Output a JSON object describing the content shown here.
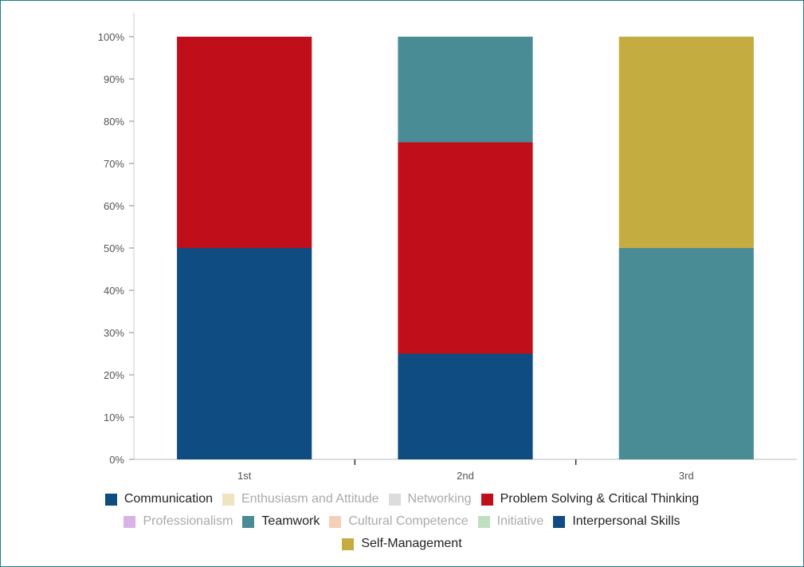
{
  "chart_data": {
    "type": "bar",
    "stacked": true,
    "normalized": true,
    "categories": [
      "1st",
      "2nd",
      "3rd"
    ],
    "ylim": [
      0,
      100
    ],
    "yticks": [
      "0%",
      "10%",
      "20%",
      "30%",
      "40%",
      "50%",
      "60%",
      "70%",
      "80%",
      "90%",
      "100%"
    ],
    "grid": false,
    "legend_position": "bottom",
    "series": [
      {
        "name": "Communication",
        "color": "#0f4c81",
        "values": [
          50,
          25,
          0
        ],
        "active": true
      },
      {
        "name": "Enthusiasm and Attitude",
        "color": "#efe3c0",
        "values": [
          0,
          0,
          0
        ],
        "active": false
      },
      {
        "name": "Networking",
        "color": "#dcdcdc",
        "values": [
          0,
          0,
          0
        ],
        "active": false
      },
      {
        "name": "Problem Solving & Critical Thinking",
        "color": "#c00f1b",
        "values": [
          50,
          50,
          0
        ],
        "active": true
      },
      {
        "name": "Professionalism",
        "color": "#d9b3e6",
        "values": [
          0,
          0,
          0
        ],
        "active": false
      },
      {
        "name": "Teamwork",
        "color": "#4a8c96",
        "values": [
          0,
          25,
          50
        ],
        "active": true
      },
      {
        "name": "Cultural Competence",
        "color": "#f6cfb8",
        "values": [
          0,
          0,
          0
        ],
        "active": false
      },
      {
        "name": "Initiative",
        "color": "#bfe0bf",
        "values": [
          0,
          0,
          0
        ],
        "active": false
      },
      {
        "name": "Interpersonal Skills",
        "color": "#0f4c81",
        "values": [
          0,
          0,
          0
        ],
        "active": true
      },
      {
        "name": "Self-Management",
        "color": "#c4ac40",
        "values": [
          0,
          0,
          50
        ],
        "active": true
      }
    ],
    "legend_rows": [
      [
        0,
        1,
        2,
        3
      ],
      [
        4,
        5,
        6,
        7,
        8
      ],
      [
        9
      ]
    ]
  }
}
